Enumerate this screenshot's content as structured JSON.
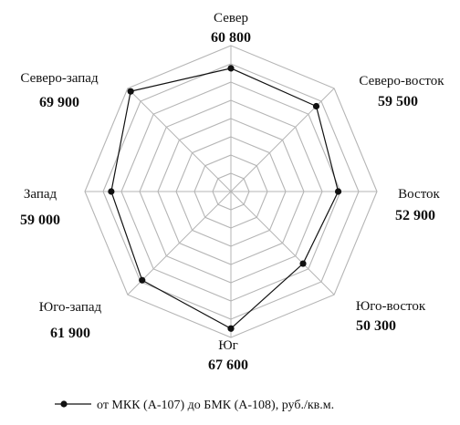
{
  "chart_data": {
    "type": "radar",
    "categories": [
      "Север",
      "Северо-восток",
      "Восток",
      "Юго-восток",
      "Юг",
      "Юго-запад",
      "Запад",
      "Северо-запад"
    ],
    "value_labels": [
      "60 800",
      "59 500",
      "52 900",
      "50 300",
      "67 600",
      "61 900",
      "59 000",
      "69 900"
    ],
    "series": [
      {
        "name": "от МКК (А-107) до БМК (А-108), руб./кв.м.",
        "values": [
          60800,
          59500,
          52900,
          50300,
          67600,
          61900,
          59000,
          69900
        ]
      }
    ],
    "range": [
      0,
      72000
    ],
    "rings": 8,
    "legend_position": "bottom",
    "colors": {
      "grid": "#b5b5b5",
      "series": "#111111"
    }
  }
}
